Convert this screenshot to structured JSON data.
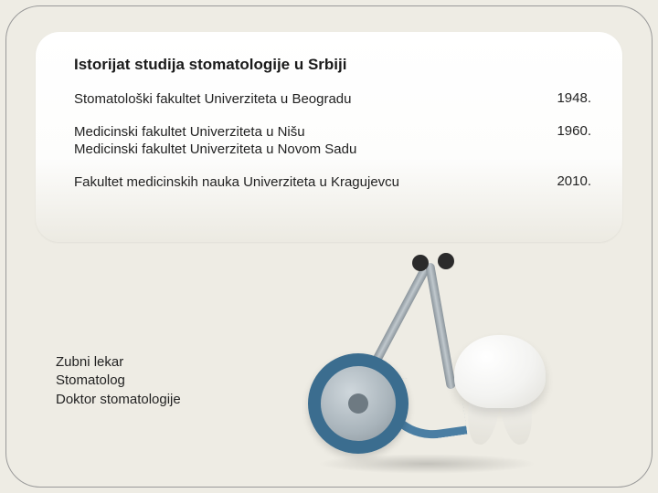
{
  "colors": {
    "page_bg": "#eeece4",
    "panel_top": "#ffffff",
    "panel_bottom": "#eceae2",
    "text": "#1a1a1a",
    "steth_ring": "#3b6d8f",
    "steth_metal": "#a9b4bb",
    "tooth": "#f3f3f1"
  },
  "fonts": {
    "family": "Verdana",
    "title_size_pt": 13,
    "body_size_pt": 11
  },
  "title": "Istorijat studija stomatologije u Srbiji",
  "rows": [
    {
      "label_lines": [
        "Stomatološki fakultet  Univerziteta u Beogradu"
      ],
      "year": "1948."
    },
    {
      "label_lines": [
        "Medicinski fakultet Univerziteta u Nišu",
        "Medicinski fakultet Univerziteta  u Novom Sadu"
      ],
      "year": "1960."
    },
    {
      "label_lines": [
        "Fakultet medicinskih nauka Univerziteta u Kragujevcu"
      ],
      "year": "2010."
    }
  ],
  "bottom_lines": [
    "Zubni lekar",
    "Stomatolog",
    "Doktor stomatologije"
  ],
  "illustration": {
    "description": "stethoscope wrapped near a white molar tooth",
    "icons": [
      "stethoscope-icon",
      "tooth-icon"
    ]
  }
}
